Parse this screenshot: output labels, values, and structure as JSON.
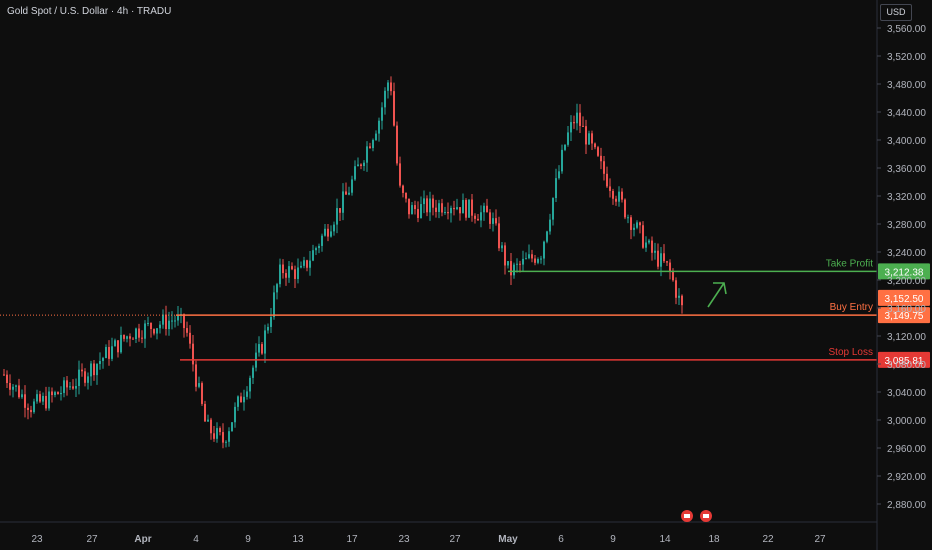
{
  "header": {
    "title": "Gold Spot / U.S. Dollar · 4h · TRADU",
    "currency": "USD"
  },
  "colors": {
    "background": "#0e0e0e",
    "up": "#26a69a",
    "down": "#ef5350",
    "take_profit": "#4caf50",
    "buy_entry": "#ff7043",
    "stop_loss": "#e53935",
    "arrow": "#4caf50"
  },
  "chart_data": {
    "type": "candlestick",
    "title": "Gold Spot / U.S. Dollar · 4h · TRADU",
    "y_axis": {
      "ticks": [
        "3,560.00",
        "3,520.00",
        "3,480.00",
        "3,440.00",
        "3,400.00",
        "3,360.00",
        "3,320.00",
        "3,280.00",
        "3,240.00",
        "3,200.00",
        "3,160.00",
        "3,120.00",
        "3,080.00",
        "3,040.00",
        "3,000.00",
        "2,960.00",
        "2,920.00",
        "2,880.00"
      ],
      "range": [
        2868,
        3580
      ],
      "position": "right"
    },
    "x_axis": {
      "ticks": [
        "23",
        "27",
        "Apr",
        "4",
        "9",
        "13",
        "17",
        "23",
        "27",
        "May",
        "6",
        "9",
        "14",
        "18",
        "22",
        "27"
      ],
      "bold_ticks": [
        "Apr",
        "May"
      ]
    },
    "price_path": [
      [
        "Mar 21",
        3065
      ],
      [
        "Mar 24",
        3020
      ],
      [
        "Mar 26",
        3030
      ],
      [
        "Mar 28",
        3055
      ],
      [
        "Mar 31",
        3125
      ],
      [
        "Apr 2",
        3145
      ],
      [
        "Apr 3",
        3130
      ],
      [
        "Apr 7",
        2990
      ],
      [
        "Apr 8",
        2970
      ],
      [
        "Apr 10",
        3110
      ],
      [
        "Apr 11",
        3215
      ],
      [
        "Apr 15",
        3210
      ],
      [
        "Apr 17",
        3320
      ],
      [
        "Apr 21",
        3430
      ],
      [
        "Apr 22",
        3495
      ],
      [
        "Apr 23",
        3330
      ],
      [
        "Apr 24",
        3300
      ],
      [
        "Apr 28",
        3310
      ],
      [
        "Apr 30",
        3290
      ],
      [
        "May 1",
        3210
      ],
      [
        "May 2",
        3240
      ],
      [
        "May 6",
        3400
      ],
      [
        "May 7",
        3435
      ],
      [
        "May 9",
        3360
      ],
      [
        "May 12",
        3290
      ],
      [
        "May 13",
        3240
      ],
      [
        "May 14",
        3215
      ],
      [
        "May 15",
        3150
      ]
    ],
    "levels": [
      {
        "name": "Take Profit",
        "price": 3212.38,
        "badge": "3,212.38"
      },
      {
        "name": "Buy Entry",
        "price": 3149.75,
        "badge": "3,149.75"
      },
      {
        "name": "Stop Loss",
        "price": 3085.81,
        "badge": "3,085.81"
      }
    ],
    "last_price_badge": "3,152.50",
    "grid": false
  }
}
